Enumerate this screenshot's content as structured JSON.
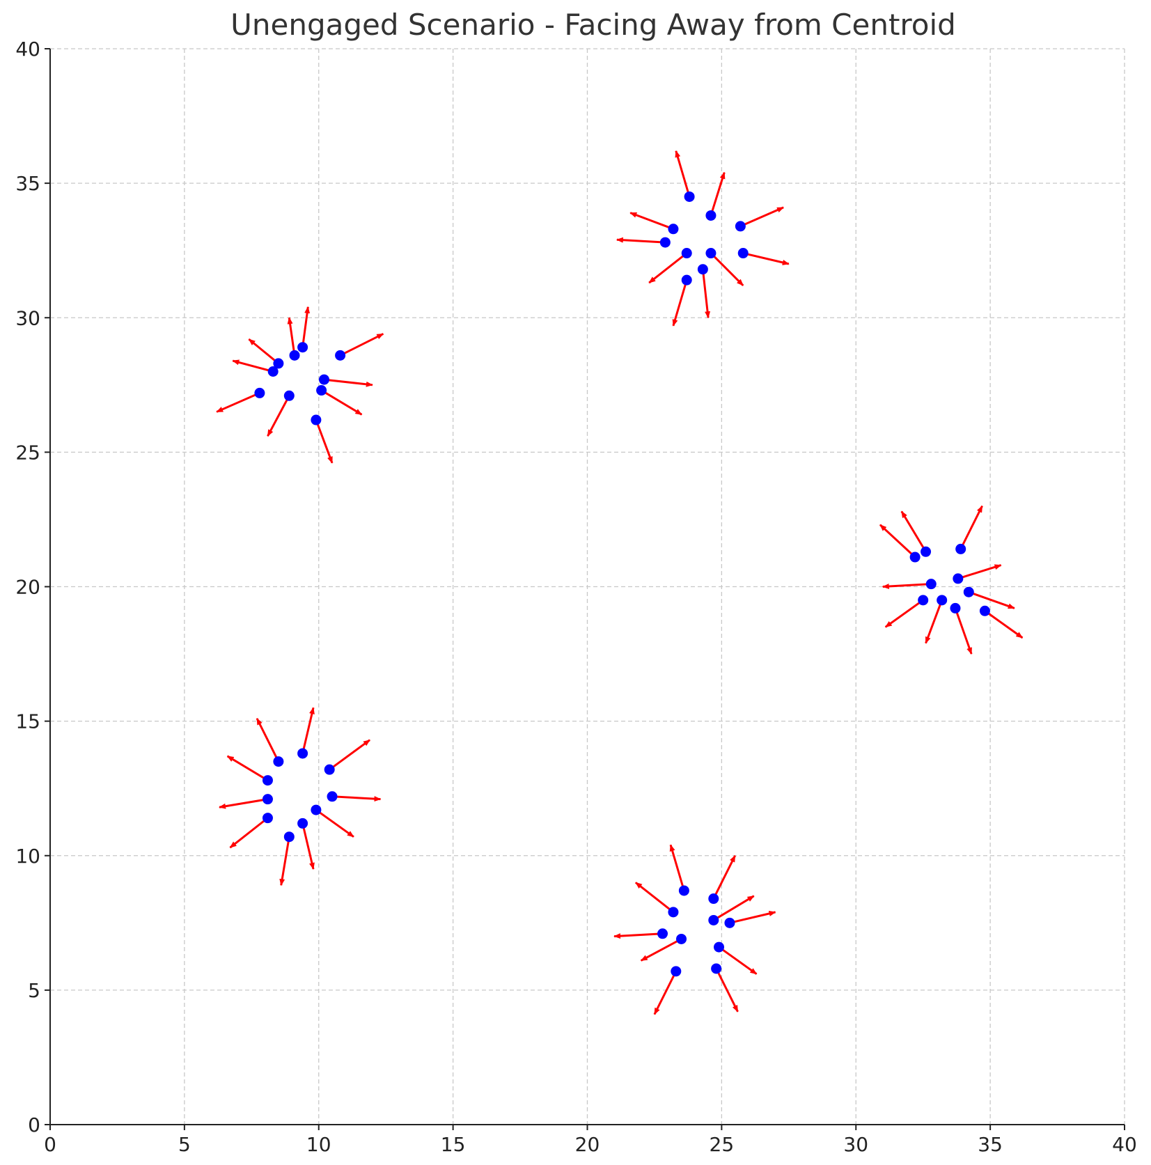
{
  "chart_data": {
    "type": "scatter",
    "title": "Unengaged Scenario - Facing Away from Centroid",
    "xlabel": "",
    "ylabel": "",
    "xlim": [
      0,
      40
    ],
    "ylim": [
      0,
      40
    ],
    "xticks": [
      0,
      5,
      10,
      15,
      20,
      25,
      30,
      35,
      40
    ],
    "yticks": [
      0,
      5,
      10,
      15,
      20,
      25,
      30,
      35,
      40
    ],
    "grid": true,
    "point_color": "#0000ff",
    "arrow_color": "#ff0000",
    "groups": [
      {
        "points": [
          {
            "x": 9.4,
            "y": 28.9,
            "dx": 0.2,
            "dy": 1.5
          },
          {
            "x": 9.1,
            "y": 28.6,
            "dx": -0.2,
            "dy": 1.4
          },
          {
            "x": 8.5,
            "y": 28.3,
            "dx": -1.1,
            "dy": 0.9
          },
          {
            "x": 8.3,
            "y": 28.0,
            "dx": -1.5,
            "dy": 0.4
          },
          {
            "x": 7.8,
            "y": 27.2,
            "dx": -1.6,
            "dy": -0.7
          },
          {
            "x": 8.9,
            "y": 27.1,
            "dx": -0.8,
            "dy": -1.5
          },
          {
            "x": 9.9,
            "y": 26.2,
            "dx": 0.6,
            "dy": -1.6
          },
          {
            "x": 10.1,
            "y": 27.3,
            "dx": 1.5,
            "dy": -0.9
          },
          {
            "x": 10.2,
            "y": 27.7,
            "dx": 1.8,
            "dy": -0.2
          },
          {
            "x": 10.8,
            "y": 28.6,
            "dx": 1.6,
            "dy": 0.8
          }
        ]
      },
      {
        "points": [
          {
            "x": 23.8,
            "y": 34.5,
            "dx": -0.5,
            "dy": 1.7
          },
          {
            "x": 24.6,
            "y": 33.8,
            "dx": 0.5,
            "dy": 1.6
          },
          {
            "x": 23.2,
            "y": 33.3,
            "dx": -1.6,
            "dy": 0.6
          },
          {
            "x": 22.9,
            "y": 32.8,
            "dx": -1.8,
            "dy": 0.1
          },
          {
            "x": 25.7,
            "y": 33.4,
            "dx": 1.6,
            "dy": 0.7
          },
          {
            "x": 23.7,
            "y": 32.4,
            "dx": -1.4,
            "dy": -1.1
          },
          {
            "x": 24.6,
            "y": 32.4,
            "dx": 1.2,
            "dy": -1.2
          },
          {
            "x": 25.8,
            "y": 32.4,
            "dx": 1.7,
            "dy": -0.4
          },
          {
            "x": 23.7,
            "y": 31.4,
            "dx": -0.5,
            "dy": -1.7
          },
          {
            "x": 24.3,
            "y": 31.8,
            "dx": 0.2,
            "dy": -1.8
          }
        ]
      },
      {
        "points": [
          {
            "x": 32.2,
            "y": 21.1,
            "dx": -1.3,
            "dy": 1.2
          },
          {
            "x": 32.6,
            "y": 21.3,
            "dx": -0.9,
            "dy": 1.5
          },
          {
            "x": 33.9,
            "y": 21.4,
            "dx": 0.8,
            "dy": 1.6
          },
          {
            "x": 32.8,
            "y": 20.1,
            "dx": -1.8,
            "dy": -0.1
          },
          {
            "x": 33.8,
            "y": 20.3,
            "dx": 1.6,
            "dy": 0.5
          },
          {
            "x": 32.5,
            "y": 19.5,
            "dx": -1.4,
            "dy": -1.0
          },
          {
            "x": 33.2,
            "y": 19.5,
            "dx": -0.6,
            "dy": -1.6
          },
          {
            "x": 34.2,
            "y": 19.8,
            "dx": 1.7,
            "dy": -0.6
          },
          {
            "x": 33.7,
            "y": 19.2,
            "dx": 0.6,
            "dy": -1.7
          },
          {
            "x": 34.8,
            "y": 19.1,
            "dx": 1.4,
            "dy": -1.0
          }
        ]
      },
      {
        "points": [
          {
            "x": 9.4,
            "y": 13.8,
            "dx": 0.4,
            "dy": 1.7
          },
          {
            "x": 8.5,
            "y": 13.5,
            "dx": -0.8,
            "dy": 1.6
          },
          {
            "x": 10.4,
            "y": 13.2,
            "dx": 1.5,
            "dy": 1.1
          },
          {
            "x": 8.1,
            "y": 12.8,
            "dx": -1.5,
            "dy": 0.9
          },
          {
            "x": 8.1,
            "y": 12.1,
            "dx": -1.8,
            "dy": -0.3
          },
          {
            "x": 10.5,
            "y": 12.2,
            "dx": 1.8,
            "dy": -0.1
          },
          {
            "x": 8.1,
            "y": 11.4,
            "dx": -1.4,
            "dy": -1.1
          },
          {
            "x": 9.4,
            "y": 11.2,
            "dx": 0.4,
            "dy": -1.7
          },
          {
            "x": 9.9,
            "y": 11.7,
            "dx": 1.4,
            "dy": -1.0
          },
          {
            "x": 8.9,
            "y": 10.7,
            "dx": -0.3,
            "dy": -1.8
          }
        ]
      },
      {
        "points": [
          {
            "x": 23.6,
            "y": 8.7,
            "dx": -0.5,
            "dy": 1.7
          },
          {
            "x": 24.7,
            "y": 8.4,
            "dx": 0.8,
            "dy": 1.6
          },
          {
            "x": 23.2,
            "y": 7.9,
            "dx": -1.4,
            "dy": 1.1
          },
          {
            "x": 24.7,
            "y": 7.6,
            "dx": 1.5,
            "dy": 0.9
          },
          {
            "x": 25.3,
            "y": 7.5,
            "dx": 1.7,
            "dy": 0.4
          },
          {
            "x": 22.8,
            "y": 7.1,
            "dx": -1.8,
            "dy": -0.1
          },
          {
            "x": 23.5,
            "y": 6.9,
            "dx": -1.5,
            "dy": -0.8
          },
          {
            "x": 24.9,
            "y": 6.6,
            "dx": 1.4,
            "dy": -1.0
          },
          {
            "x": 23.3,
            "y": 5.7,
            "dx": -0.8,
            "dy": -1.6
          },
          {
            "x": 24.8,
            "y": 5.8,
            "dx": 0.8,
            "dy": -1.6
          }
        ]
      }
    ]
  }
}
